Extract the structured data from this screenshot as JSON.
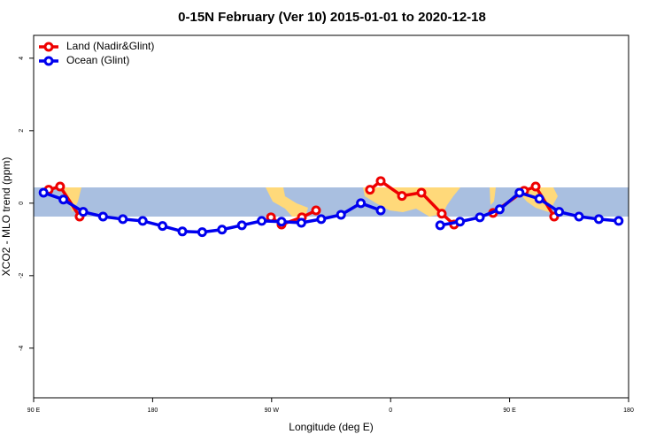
{
  "chart_data": {
    "type": "line",
    "title": "0-15N February (Ver 10)   2015-01-01 to 2020-12-18",
    "xlabel": "Longitude (deg E)",
    "ylabel": "XCO2 - MLO trend (ppm)",
    "xlim": [
      90,
      540
    ],
    "ylim": [
      -5.37,
      4.63
    ],
    "xticks": [
      {
        "value": 90,
        "label": "90 E"
      },
      {
        "value": 180,
        "label": "180"
      },
      {
        "value": 270,
        "label": "90 W"
      },
      {
        "value": 360,
        "label": "0"
      },
      {
        "value": 450,
        "label": "90 E"
      },
      {
        "value": 540,
        "label": "180"
      }
    ],
    "yticks": [
      -4,
      -2,
      0,
      2,
      4
    ],
    "legend": "top-left",
    "series": [
      {
        "name": "Land (Nadir&Glint)",
        "color": "#ee0000",
        "x": [
          101.4,
          110,
          124.8,
          200,
          269.5,
          277.5,
          292.9,
          303.6,
          320,
          344.4,
          352.5,
          368.6,
          383.3,
          398.7,
          408,
          420,
          437.5,
          461,
          469.7,
          483.7
        ],
        "values": [
          0.37,
          0.46,
          -0.37,
          null,
          -0.39,
          -0.59,
          -0.39,
          -0.2,
          null,
          0.37,
          0.61,
          0.2,
          0.29,
          -0.29,
          -0.59,
          null,
          -0.27,
          0.34,
          0.46,
          -0.37
        ]
      },
      {
        "name": "Ocean (Glint)",
        "color": "#0000ee",
        "x": [
          97.5,
          112.5,
          127.5,
          142.5,
          157.5,
          172.5,
          187.5,
          202.5,
          217.5,
          232.5,
          247.5,
          262.5,
          277.5,
          292.5,
          307.5,
          322.5,
          337.5,
          352.5,
          367.5,
          382.5,
          397.5,
          412.5,
          427.5,
          442.5,
          457.5,
          472.5,
          487.5,
          502.5,
          517.5,
          532.5
        ],
        "values": [
          0.29,
          0.1,
          -0.24,
          -0.37,
          -0.44,
          -0.49,
          -0.63,
          -0.78,
          -0.8,
          -0.73,
          -0.61,
          -0.49,
          -0.51,
          -0.54,
          -0.44,
          -0.32,
          0.0,
          -0.2,
          null,
          null,
          -0.61,
          -0.51,
          -0.39,
          -0.17,
          0.29,
          0.12,
          -0.24,
          -0.37,
          -0.44,
          -0.49
        ]
      }
    ]
  }
}
